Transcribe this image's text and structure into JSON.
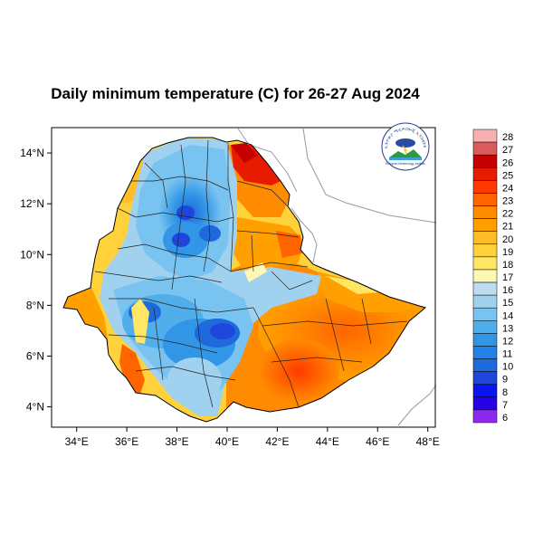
{
  "title": "Daily minimum temperature (C) for 26-27 Aug 2024",
  "logo": {
    "arc_text": "የኢትዮጵያ ሜቲዎሮሎጂ ኢንስቲትዩት",
    "subtitle": "Ethiopian Meteorology Institute"
  },
  "map": {
    "lon_range": [
      33,
      48.3
    ],
    "lat_range": [
      3.2,
      15
    ],
    "x_ticks": [
      {
        "value": 34,
        "label": "34°E"
      },
      {
        "value": 36,
        "label": "36°E"
      },
      {
        "value": 38,
        "label": "38°E"
      },
      {
        "value": 40,
        "label": "40°E"
      },
      {
        "value": 42,
        "label": "42°E"
      },
      {
        "value": 44,
        "label": "44°E"
      },
      {
        "value": 46,
        "label": "46°E"
      },
      {
        "value": 48,
        "label": "48°E"
      }
    ],
    "y_ticks": [
      {
        "value": 14,
        "label": "14°N"
      },
      {
        "value": 12,
        "label": "12°N"
      },
      {
        "value": 10,
        "label": "10°N"
      },
      {
        "value": 8,
        "label": "8°N"
      },
      {
        "value": 6,
        "label": "6°N"
      },
      {
        "value": 4,
        "label": "4°N"
      }
    ]
  },
  "colorbar": {
    "levels": [
      {
        "label": "28",
        "color": "#f6b0b0"
      },
      {
        "label": "27",
        "color": "#db5a5a"
      },
      {
        "label": "26",
        "color": "#c40000"
      },
      {
        "label": "25",
        "color": "#e81a00"
      },
      {
        "label": "24",
        "color": "#ff3a00"
      },
      {
        "label": "23",
        "color": "#ff6400"
      },
      {
        "label": "22",
        "color": "#ff8c00"
      },
      {
        "label": "21",
        "color": "#ffa000"
      },
      {
        "label": "20",
        "color": "#ffbe28"
      },
      {
        "label": "19",
        "color": "#ffd23c"
      },
      {
        "label": "18",
        "color": "#ffe664"
      },
      {
        "label": "17",
        "color": "#fff8b4"
      },
      {
        "label": "16",
        "color": "#bedcf0"
      },
      {
        "label": "15",
        "color": "#a0d2f0"
      },
      {
        "label": "14",
        "color": "#78c3f0"
      },
      {
        "label": "13",
        "color": "#50afeb"
      },
      {
        "label": "12",
        "color": "#3296e6"
      },
      {
        "label": "11",
        "color": "#2382e6"
      },
      {
        "label": "10",
        "color": "#1e69dc"
      },
      {
        "label": "9",
        "color": "#1e46dc"
      },
      {
        "label": "8",
        "color": "#0a14f0"
      },
      {
        "label": "7",
        "color": "#2800e6"
      },
      {
        "label": "6",
        "color": "#8c28f0"
      }
    ]
  }
}
